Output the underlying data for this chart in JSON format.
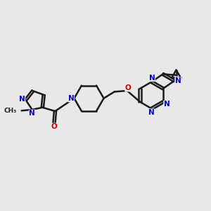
{
  "background_color": "#e8e8e8",
  "bond_color": "#1a1a1a",
  "nitrogen_color": "#0000cc",
  "oxygen_color": "#cc0000",
  "bond_width": 1.8,
  "dbo": 0.055,
  "figsize": [
    3.0,
    3.0
  ],
  "dpi": 100,
  "xlim": [
    0,
    10
  ],
  "ylim": [
    0,
    10
  ]
}
